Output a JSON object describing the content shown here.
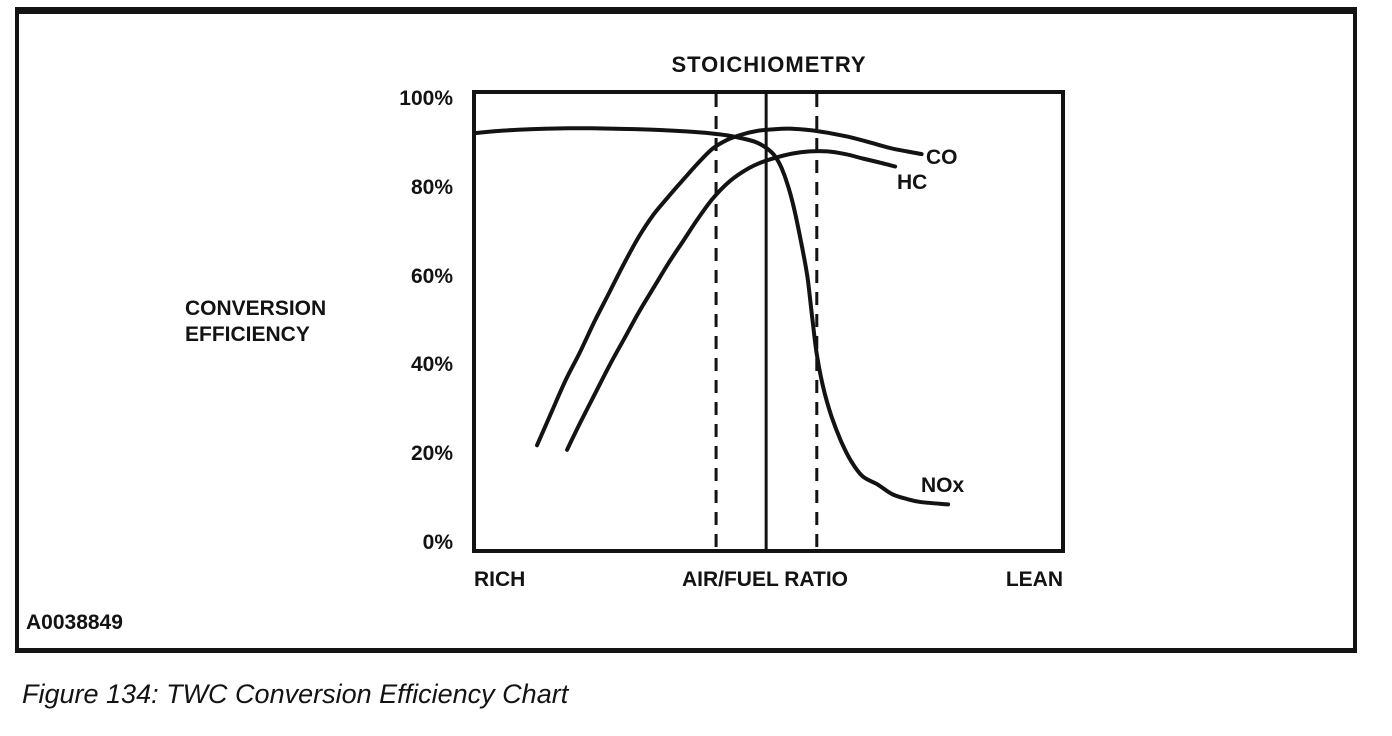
{
  "figure": {
    "id_code": "A0038849",
    "caption": "Figure 134: TWC Conversion Efficiency Chart"
  },
  "chart_data": {
    "type": "line",
    "title": "STOICHIOMETRY",
    "ylabel": "CONVERSION EFFICIENCY",
    "ylabel_lines": [
      "CONVERSION",
      "EFFICIENCY"
    ],
    "xlabel": "AIR/FUEL RATIO",
    "x_end_labels": {
      "left": "RICH",
      "right": "LEAN"
    },
    "ylim": [
      0,
      100
    ],
    "y_ticks": [
      [
        100,
        "100%"
      ],
      [
        80,
        "80%"
      ],
      [
        60,
        "60%"
      ],
      [
        40,
        "40%"
      ],
      [
        20,
        "20%"
      ],
      [
        0,
        "0%"
      ]
    ],
    "x_unit": "relative air/fuel ratio position, 0 = rich end, 100 = lean end of plotted axis",
    "grid": false,
    "legend": "inline labels at right end of each curve",
    "line_color": "#131313",
    "reference_lines": [
      {
        "x": 49.6,
        "style": "solid",
        "label": "STOICHIOMETRY"
      },
      {
        "x": 41.1,
        "style": "dashed",
        "label": ""
      },
      {
        "x": 58.2,
        "style": "dashed",
        "label": ""
      }
    ],
    "series": [
      {
        "name": "CO",
        "points": [
          [
            10.7,
            22
          ],
          [
            13,
            29
          ],
          [
            15.5,
            36.5
          ],
          [
            18,
            43
          ],
          [
            20.5,
            50
          ],
          [
            23,
            56.5
          ],
          [
            25.5,
            63
          ],
          [
            28,
            69
          ],
          [
            30.5,
            74
          ],
          [
            33,
            78
          ],
          [
            35.5,
            81.8
          ],
          [
            38,
            85.5
          ],
          [
            40.5,
            88.8
          ],
          [
            43,
            90.8
          ],
          [
            45.5,
            92
          ],
          [
            48,
            92.8
          ],
          [
            51,
            93.2
          ],
          [
            54,
            93.3
          ],
          [
            57,
            93
          ],
          [
            60,
            92.4
          ],
          [
            63.5,
            91.5
          ],
          [
            67,
            90.3
          ],
          [
            70.5,
            89
          ],
          [
            73.5,
            88.2
          ],
          [
            76,
            87.6
          ]
        ]
      },
      {
        "name": "HC",
        "points": [
          [
            15.8,
            21
          ],
          [
            18,
            27
          ],
          [
            20.5,
            33.5
          ],
          [
            23,
            40
          ],
          [
            25.5,
            46
          ],
          [
            28,
            52
          ],
          [
            30.5,
            57.5
          ],
          [
            33,
            63
          ],
          [
            35.5,
            68
          ],
          [
            38,
            73
          ],
          [
            40.5,
            77.5
          ],
          [
            43,
            81
          ],
          [
            45.5,
            83.5
          ],
          [
            48,
            85.3
          ],
          [
            51,
            86.7
          ],
          [
            54,
            87.7
          ],
          [
            57,
            88.2
          ],
          [
            60,
            88.2
          ],
          [
            63,
            87.6
          ],
          [
            66,
            86.6
          ],
          [
            68.5,
            85.8
          ],
          [
            71.5,
            84.8
          ]
        ]
      },
      {
        "name": "NOx",
        "points": [
          [
            0,
            92.3
          ],
          [
            4,
            92.8
          ],
          [
            8,
            93.1
          ],
          [
            12,
            93.3
          ],
          [
            16,
            93.4
          ],
          [
            20,
            93.4
          ],
          [
            24,
            93.3
          ],
          [
            28,
            93.2
          ],
          [
            32,
            93
          ],
          [
            36,
            92.7
          ],
          [
            40,
            92.3
          ],
          [
            43,
            91.8
          ],
          [
            46,
            91
          ],
          [
            48,
            90.2
          ],
          [
            49.6,
            89
          ],
          [
            51,
            87.3
          ],
          [
            52.2,
            84.5
          ],
          [
            53.3,
            80.5
          ],
          [
            54.4,
            75
          ],
          [
            55.5,
            68
          ],
          [
            56.6,
            60
          ],
          [
            57.4,
            51
          ],
          [
            58.2,
            42.5
          ],
          [
            59.3,
            35
          ],
          [
            60.7,
            28.5
          ],
          [
            62.3,
            23
          ],
          [
            64,
            18.5
          ],
          [
            66,
            15
          ],
          [
            68.5,
            13.2
          ],
          [
            71,
            11
          ],
          [
            73.5,
            9.9
          ],
          [
            76,
            9.2
          ],
          [
            80.5,
            8.7
          ]
        ]
      }
    ]
  }
}
